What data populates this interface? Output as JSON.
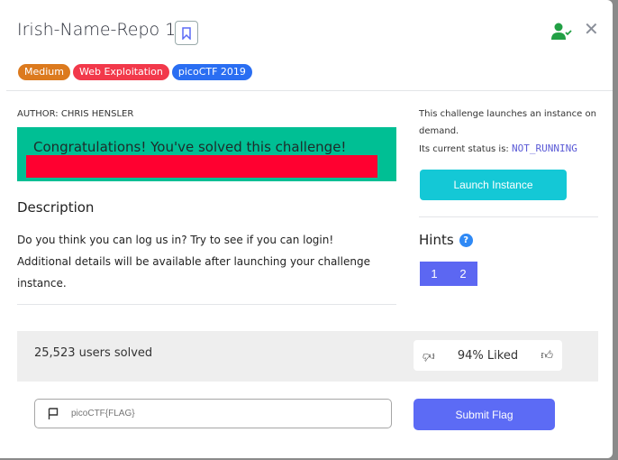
{
  "title": "Irish-Name-Repo 1",
  "tags": [
    {
      "label": "Medium",
      "color": "#dc7a1e"
    },
    {
      "label": "Web Exploitation",
      "color": "#f2394b"
    },
    {
      "label": "picoCTF 2019",
      "color": "#2a6ef2"
    }
  ],
  "author": "AUTHOR: CHRIS HENSLER",
  "congrats": "Congratulations! You've solved this challenge!",
  "description": {
    "heading": "Description",
    "line1": "Do you think you can log us in? Try to see if you can login!",
    "line2": "Additional details will be available after launching your challenge instance."
  },
  "instance": {
    "text": "This challenge launches an instance on demand.",
    "status_label": "Its current status is:",
    "status": "NOT_RUNNING",
    "launch_label": "Launch Instance"
  },
  "hints": {
    "heading": "Hints",
    "help": "?",
    "items": [
      "1",
      "2"
    ]
  },
  "stats": {
    "solved": "25,523 users solved",
    "liked": "94% Liked"
  },
  "flag": {
    "placeholder": "picoCTF{FLAG}",
    "submit_label": "Submit Flag"
  },
  "colors": {
    "success": "#00bf94",
    "accent": "#5c6bf5",
    "redaction": "#ff0030"
  }
}
